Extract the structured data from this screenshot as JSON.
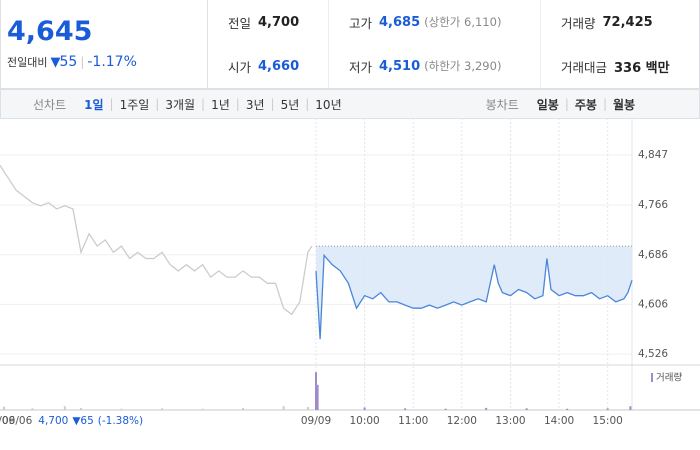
{
  "summary": {
    "price": "4,645",
    "change_label": "전일대비",
    "change": "55",
    "change_rate": "-1.17%"
  },
  "quotes": [
    {
      "label": "전일",
      "value": "4,700"
    },
    {
      "label": "고가",
      "value": "4,685",
      "note": "(상한가 6,110)"
    },
    {
      "label": "거래량",
      "value": "72,425"
    },
    {
      "label": "시가",
      "value": "4,660"
    },
    {
      "label": "저가",
      "value": "4,510",
      "note": "(하한가 3,290)"
    },
    {
      "label": "거래대금",
      "value": "336 백만"
    }
  ],
  "tabs": {
    "line_label": "선차트",
    "periods": [
      "1일",
      "1주일",
      "3개월",
      "1년",
      "3년",
      "5년",
      "10년"
    ],
    "active": 0,
    "candle_label": "봉차트",
    "candles": [
      "일봉",
      "주봉",
      "월봉"
    ]
  },
  "chart_data": {
    "type": "line",
    "xlim": [
      0,
      780
    ],
    "ylim": [
      4510,
      4900
    ],
    "xticks": [
      {
        "value": 0,
        "label": "09/06"
      },
      {
        "value": 390,
        "label": "09/09"
      },
      {
        "value": 450,
        "label": "10:00"
      },
      {
        "value": 510,
        "label": "11:00"
      },
      {
        "value": 570,
        "label": "12:00"
      },
      {
        "value": 630,
        "label": "13:00"
      },
      {
        "value": 690,
        "label": "14:00"
      },
      {
        "value": 750,
        "label": "15:00"
      }
    ],
    "yticks": [
      {
        "value": 4847,
        "label": "4,847"
      },
      {
        "value": 4766,
        "label": "4,766"
      },
      {
        "value": 4686,
        "label": "4,686"
      },
      {
        "value": 4606,
        "label": "4,606"
      },
      {
        "value": 4526,
        "label": "4,526"
      }
    ],
    "grid": true,
    "baseline": 4700,
    "series": [
      {
        "color": "#cccccc",
        "x": [
          0,
          10,
          20,
          30,
          40,
          50,
          60,
          70,
          80,
          90,
          100,
          110,
          120,
          130,
          140,
          150,
          160,
          170,
          180,
          190,
          200,
          210,
          220,
          230,
          240,
          250,
          260,
          270,
          280,
          290,
          300,
          310,
          320,
          330,
          340,
          350,
          360,
          370,
          380,
          385
        ],
        "values": [
          4830,
          4810,
          4790,
          4780,
          4770,
          4765,
          4770,
          4760,
          4765,
          4760,
          4690,
          4720,
          4700,
          4710,
          4690,
          4700,
          4680,
          4690,
          4680,
          4680,
          4690,
          4670,
          4660,
          4670,
          4660,
          4670,
          4650,
          4660,
          4650,
          4650,
          4660,
          4650,
          4650,
          4640,
          4640,
          4600,
          4590,
          4610,
          4690,
          4700
        ]
      },
      {
        "color": "#4a86d8",
        "fill": "#dbe7f8",
        "x": [
          390,
          395,
          400,
          410,
          420,
          430,
          440,
          450,
          460,
          470,
          480,
          490,
          500,
          510,
          520,
          530,
          540,
          550,
          560,
          570,
          580,
          590,
          600,
          610,
          615,
          620,
          630,
          640,
          650,
          660,
          670,
          675,
          680,
          690,
          700,
          710,
          720,
          730,
          740,
          750,
          760,
          770,
          775,
          780
        ],
        "values": [
          4660,
          4550,
          4685,
          4670,
          4660,
          4640,
          4600,
          4620,
          4615,
          4625,
          4610,
          4610,
          4605,
          4600,
          4600,
          4605,
          4600,
          4605,
          4610,
          4605,
          4610,
          4615,
          4610,
          4670,
          4640,
          4625,
          4620,
          4630,
          4625,
          4615,
          4620,
          4680,
          4630,
          4620,
          4625,
          4620,
          4620,
          4625,
          4615,
          4620,
          4610,
          4615,
          4625,
          4645
        ]
      }
    ],
    "volume": {
      "legend": "거래량",
      "ylim": [
        0,
        10000
      ],
      "series": [
        {
          "color": "#cccccc",
          "x": [
            5,
            40,
            80,
            100,
            150,
            200,
            250,
            300,
            350,
            380
          ],
          "values": [
            800,
            400,
            900,
            500,
            300,
            400,
            300,
            500,
            900,
            700
          ]
        },
        {
          "color": "#a08cc8",
          "x": [
            390,
            392,
            450,
            500,
            550,
            600,
            650,
            700,
            750,
            778
          ],
          "values": [
            9000,
            6000,
            600,
            400,
            300,
            500,
            400,
            300,
            400,
            900
          ]
        }
      ]
    },
    "prev_note": {
      "date": "09/06",
      "close": "4,700",
      "change": "65",
      "rate": "(-1.38%)"
    }
  }
}
